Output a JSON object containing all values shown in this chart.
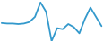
{
  "x": [
    0,
    1,
    2,
    3,
    4,
    5,
    6,
    7,
    8,
    9,
    10,
    11,
    12,
    13,
    14,
    15,
    16,
    17,
    18
  ],
  "y": [
    30,
    29,
    29,
    28,
    29,
    32,
    42,
    70,
    52,
    -5,
    20,
    18,
    28,
    22,
    10,
    38,
    60,
    42,
    24
  ],
  "line_color": "#3399cc",
  "linewidth": 1.3,
  "background_color": "#ffffff",
  "ylim": [
    0,
    75
  ],
  "xlim": [
    -0.3,
    18.3
  ]
}
